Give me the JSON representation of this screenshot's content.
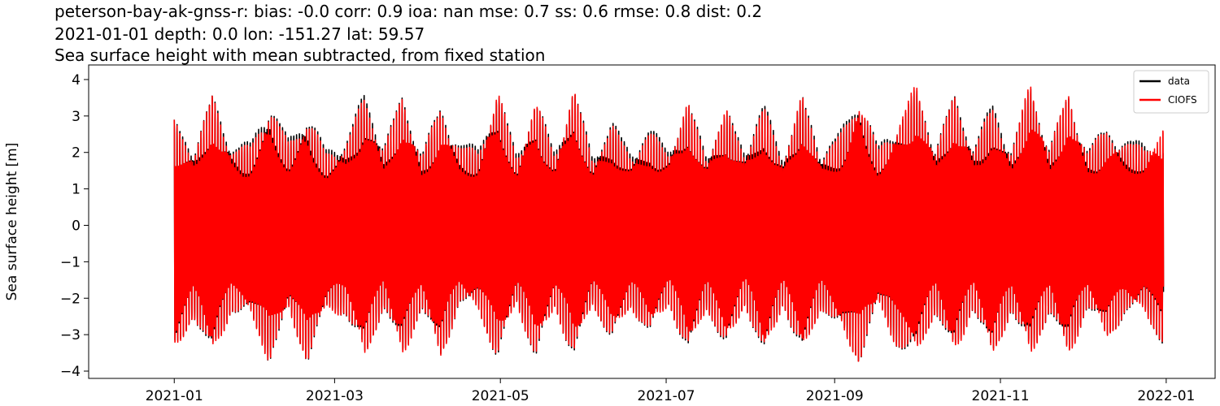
{
  "chart_data": {
    "type": "line",
    "title_lines": [
      "peterson-bay-ak-gnss-r: bias: -0.0  corr: 0.9  ioa: nan  mse: 0.7  ss: 0.6  rmse: 0.8  dist: 0.2",
      "2021-01-01 depth: 0.0 lon: -151.27 lat: 59.57",
      "Sea surface height with mean subtracted, from fixed station"
    ],
    "xlabel": "",
    "ylabel": "Sea surface height [m]",
    "x_range": [
      "2021-01-01",
      "2022-01-01"
    ],
    "ylim": [
      -4.2,
      4.4
    ],
    "x_ticks": [
      "2021-01",
      "2021-03",
      "2021-05",
      "2021-07",
      "2021-09",
      "2021-11",
      "2022-01"
    ],
    "y_ticks": [
      -4,
      -3,
      -2,
      -1,
      0,
      1,
      2,
      3,
      4
    ],
    "grid": false,
    "legend_position": "top-right",
    "series": [
      {
        "name": "data",
        "color": "#000000",
        "x_start": "2021-01-01",
        "x_end": "2021-12-31",
        "envelope_dates": [
          "2021-01-01",
          "2021-01-08",
          "2021-01-15",
          "2021-01-22",
          "2021-01-29",
          "2021-02-05",
          "2021-02-12",
          "2021-02-19",
          "2021-02-26",
          "2021-03-05",
          "2021-03-12",
          "2021-03-19",
          "2021-03-26",
          "2021-04-02",
          "2021-04-09",
          "2021-04-16",
          "2021-04-23",
          "2021-04-30",
          "2021-05-07",
          "2021-05-14",
          "2021-05-21",
          "2021-05-28",
          "2021-06-04",
          "2021-06-11",
          "2021-06-18",
          "2021-06-25",
          "2021-07-02",
          "2021-07-09",
          "2021-07-16",
          "2021-07-23",
          "2021-07-30",
          "2021-08-06",
          "2021-08-13",
          "2021-08-20",
          "2021-08-27",
          "2021-09-03",
          "2021-09-10",
          "2021-09-17",
          "2021-09-24",
          "2021-10-01",
          "2021-10-08",
          "2021-10-15",
          "2021-10-22",
          "2021-10-29",
          "2021-11-05",
          "2021-11-12",
          "2021-11-19",
          "2021-11-26",
          "2021-12-03",
          "2021-12-10",
          "2021-12-17",
          "2021-12-24",
          "2021-12-31"
        ],
        "max": [
          2.9,
          2.2,
          3.6,
          2.3,
          2.3,
          3.5,
          2.4,
          3.2,
          2.1,
          2.4,
          3.7,
          2.3,
          3.6,
          2.1,
          3.3,
          2.3,
          2.2,
          3.8,
          2.0,
          3.5,
          2.1,
          3.8,
          2.0,
          2.9,
          2.1,
          2.7,
          2.2,
          3.4,
          2.1,
          3.2,
          2.2,
          3.4,
          2.0,
          3.6,
          2.1,
          2.6,
          3.7,
          2.2,
          2.9,
          3.8,
          2.3,
          3.6,
          2.3,
          3.4,
          2.2,
          3.9,
          2.3,
          3.6,
          2.2,
          2.7,
          2.4,
          2.3,
          2.2
        ],
        "min": [
          -3.8,
          -2.5,
          -3.8,
          -2.4,
          -2.6,
          -3.8,
          -2.5,
          -3.8,
          -2.4,
          -2.5,
          -3.8,
          -2.3,
          -3.8,
          -2.3,
          -3.8,
          -2.2,
          -2.4,
          -3.8,
          -2.2,
          -3.8,
          -2.3,
          -3.8,
          -2.2,
          -3.3,
          -2.3,
          -3.1,
          -2.2,
          -3.7,
          -2.3,
          -3.6,
          -2.2,
          -3.8,
          -2.2,
          -3.8,
          -2.3,
          -3.0,
          -3.8,
          -2.3,
          -3.4,
          -3.8,
          -2.4,
          -3.8,
          -2.3,
          -3.8,
          -2.4,
          -3.8,
          -2.4,
          -3.8,
          -2.3,
          -3.2,
          -2.5,
          -2.4,
          -3.4
        ]
      },
      {
        "name": "CIOFS",
        "color": "#ff0000",
        "x_start": "2021-01-01",
        "x_end": "2021-12-31",
        "envelope_dates": [
          "2021-01-01",
          "2021-01-08",
          "2021-01-15",
          "2021-01-22",
          "2021-01-29",
          "2021-02-05",
          "2021-02-12",
          "2021-02-19",
          "2021-02-26",
          "2021-03-05",
          "2021-03-12",
          "2021-03-19",
          "2021-03-26",
          "2021-04-02",
          "2021-04-09",
          "2021-04-16",
          "2021-04-23",
          "2021-04-30",
          "2021-05-07",
          "2021-05-14",
          "2021-05-21",
          "2021-05-28",
          "2021-06-04",
          "2021-06-11",
          "2021-06-18",
          "2021-06-25",
          "2021-07-02",
          "2021-07-09",
          "2021-07-16",
          "2021-07-23",
          "2021-07-30",
          "2021-08-06",
          "2021-08-13",
          "2021-08-20",
          "2021-08-27",
          "2021-09-03",
          "2021-09-10",
          "2021-09-17",
          "2021-09-24",
          "2021-10-01",
          "2021-10-08",
          "2021-10-15",
          "2021-10-22",
          "2021-10-29",
          "2021-11-05",
          "2021-11-12",
          "2021-11-19",
          "2021-11-26",
          "2021-12-03",
          "2021-12-10",
          "2021-12-17",
          "2021-12-24",
          "2021-12-31"
        ],
        "max": [
          2.9,
          2.1,
          3.6,
          2.2,
          2.2,
          3.4,
          2.3,
          3.1,
          2.0,
          2.3,
          3.6,
          2.2,
          3.6,
          2.0,
          3.3,
          2.2,
          2.1,
          3.8,
          1.9,
          3.5,
          2.0,
          3.8,
          1.9,
          2.8,
          2.0,
          2.6,
          2.1,
          3.4,
          2.0,
          3.2,
          2.1,
          3.3,
          1.9,
          3.6,
          2.0,
          2.5,
          3.7,
          2.1,
          2.9,
          3.9,
          2.2,
          3.6,
          2.2,
          3.3,
          2.1,
          4.0,
          2.2,
          3.7,
          2.1,
          2.7,
          2.3,
          2.2,
          2.8
        ],
        "min": [
          -3.8,
          -2.5,
          -3.8,
          -2.4,
          -2.6,
          -3.8,
          -2.5,
          -3.8,
          -2.4,
          -2.5,
          -3.8,
          -2.3,
          -3.8,
          -2.3,
          -3.8,
          -2.2,
          -2.4,
          -3.8,
          -2.2,
          -3.8,
          -2.3,
          -3.8,
          -2.2,
          -3.3,
          -2.3,
          -3.1,
          -2.2,
          -3.7,
          -2.3,
          -3.6,
          -2.2,
          -3.8,
          -2.2,
          -3.8,
          -2.3,
          -3.0,
          -3.8,
          -2.3,
          -3.4,
          -3.8,
          -2.4,
          -3.8,
          -2.3,
          -3.8,
          -2.4,
          -3.8,
          -2.4,
          -3.8,
          -2.3,
          -3.2,
          -2.5,
          -2.4,
          -3.4
        ]
      }
    ]
  }
}
